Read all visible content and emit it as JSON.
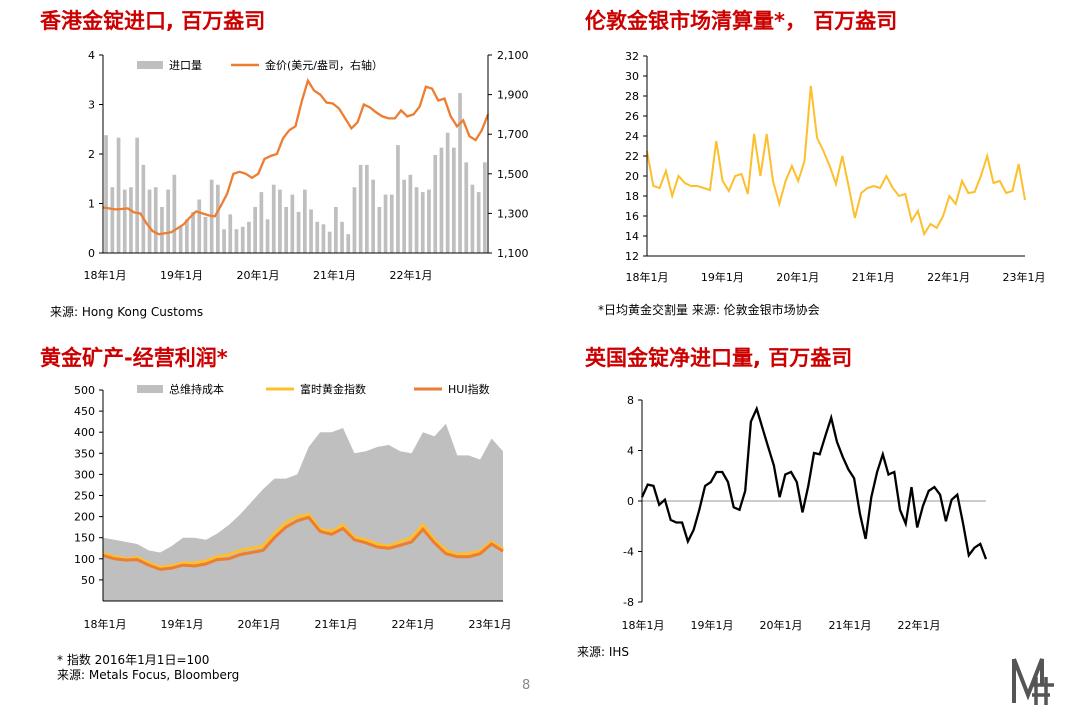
{
  "page_number": "8",
  "logo_icon": "mf-logo-icon",
  "colors": {
    "title_red": "#cc0000",
    "bar_gray": "#bfbfbf",
    "price_orange": "#ed7d31",
    "gold_yellow": "#fdbf2d",
    "hui_orange": "#ed7d31",
    "line_black": "#000000"
  },
  "chart_data": [
    {
      "type": "bar+line",
      "title": "香港金锭进口, 百万盎司",
      "source": "来源: Hong Kong Customs",
      "legend": [
        {
          "name": "进口量",
          "type": "bar"
        },
        {
          "name": "金价(美元/盎司，右轴）",
          "type": "line"
        }
      ],
      "legend_placement": "top",
      "x_tick_labels": [
        "18年1月",
        "19年1月",
        "20年1月",
        "21年1月",
        "22年1月"
      ],
      "y_left": {
        "ylim": [
          0,
          4
        ],
        "ticks": [
          "0",
          "1",
          "2",
          "3",
          "4"
        ]
      },
      "y_right": {
        "ylim": [
          1100,
          2100
        ],
        "ticks": [
          "1,100",
          "1,300",
          "1,500",
          "1,700",
          "1,900",
          "2,100"
        ]
      },
      "bars": [
        2.38,
        1.33,
        2.33,
        1.28,
        1.33,
        2.33,
        1.78,
        1.28,
        1.33,
        0.93,
        1.28,
        1.58,
        0.53,
        0.68,
        0.83,
        1.08,
        0.73,
        1.48,
        1.38,
        0.48,
        0.78,
        0.48,
        0.53,
        0.63,
        0.93,
        1.23,
        0.68,
        1.38,
        1.28,
        0.93,
        1.18,
        0.83,
        1.28,
        0.88,
        0.63,
        0.58,
        0.43,
        0.93,
        0.63,
        0.38,
        1.33,
        1.78,
        1.78,
        1.48,
        0.93,
        1.18,
        1.18,
        2.18,
        1.48,
        1.58,
        1.33,
        1.23,
        1.28,
        1.98,
        2.13,
        2.43,
        2.13,
        3.23,
        1.83,
        1.38,
        1.23,
        1.83
      ],
      "price_series": {
        "name": "金价(美元/盎司，右轴）",
        "values": [
          1330,
          1325,
          1320,
          1322,
          1325,
          1305,
          1300,
          1250,
          1210,
          1195,
          1200,
          1205,
          1225,
          1245,
          1280,
          1310,
          1300,
          1290,
          1285,
          1340,
          1400,
          1500,
          1510,
          1500,
          1480,
          1500,
          1575,
          1590,
          1600,
          1680,
          1720,
          1740,
          1865,
          1970,
          1920,
          1900,
          1860,
          1855,
          1830,
          1780,
          1730,
          1760,
          1850,
          1835,
          1810,
          1790,
          1780,
          1780,
          1820,
          1790,
          1800,
          1840,
          1940,
          1930,
          1870,
          1880,
          1790,
          1740,
          1770,
          1690,
          1670,
          1720,
          1800
        ]
      }
    },
    {
      "type": "line",
      "title": "伦敦金银市场清算量*， 百万盎司",
      "source": "*日均黄金交割量 来源: 伦敦金银市场协会",
      "x_tick_labels": [
        "18年1月",
        "19年1月",
        "20年1月",
        "21年1月",
        "22年1月",
        "23年1月"
      ],
      "ylim": [
        12,
        32
      ],
      "y_ticks": [
        "12",
        "14",
        "16",
        "18",
        "20",
        "22",
        "24",
        "26",
        "28",
        "30",
        "32"
      ],
      "series": [
        {
          "values": [
            22.5,
            19.0,
            18.8,
            20.5,
            18.0,
            20.0,
            19.3,
            19.0,
            19.0,
            18.8,
            18.6,
            23.5,
            19.5,
            18.5,
            20.0,
            20.2,
            18.2,
            24.2,
            20.0,
            24.2,
            19.5,
            17.2,
            19.5,
            21.0,
            19.5,
            21.5,
            29.0,
            23.8,
            22.5,
            21.0,
            19.2,
            22.0,
            19.0,
            15.8,
            18.3,
            18.8,
            19.0,
            18.8,
            20.0,
            18.8,
            18.0,
            18.2,
            15.5,
            16.5,
            14.2,
            15.2,
            14.8,
            16.0,
            18.0,
            17.2,
            19.5,
            18.3,
            18.4,
            20.0,
            22.0,
            19.3,
            19.5,
            18.3,
            18.5,
            21.2,
            17.6
          ]
        }
      ]
    },
    {
      "type": "area+line",
      "title": "黄金矿产-经营利润*",
      "source": "来源: Metals Focus, Bloomberg",
      "footnote": "* 指数 2016年1月1日=100",
      "legend": [
        {
          "name": "总维持成本",
          "type": "area"
        },
        {
          "name": "富时黄金指数",
          "type": "line"
        },
        {
          "name": "HUI指数",
          "type": "line"
        }
      ],
      "legend_placement": "top",
      "x_tick_labels": [
        "18年1月",
        "19年1月",
        "20年1月",
        "21年1月",
        "22年1月",
        "23年1月"
      ],
      "ylim": [
        0,
        500
      ],
      "y_ticks": [
        "50",
        "100",
        "150",
        "200",
        "250",
        "300",
        "350",
        "400",
        "450",
        "500"
      ],
      "series": [
        {
          "name": "总维持成本",
          "values": [
            150,
            145,
            140,
            135,
            120,
            115,
            130,
            150,
            150,
            145,
            160,
            180,
            205,
            235,
            265,
            290,
            290,
            300,
            365,
            400,
            400,
            410,
            350,
            355,
            365,
            370,
            355,
            350,
            400,
            390,
            420,
            345,
            345,
            335,
            385,
            355
          ]
        },
        {
          "name": "富时黄金指数",
          "values": [
            113,
            105,
            100,
            103,
            90,
            80,
            83,
            90,
            90,
            95,
            105,
            110,
            120,
            125,
            130,
            160,
            185,
            200,
            205,
            170,
            165,
            180,
            150,
            145,
            135,
            130,
            140,
            150,
            180,
            145,
            120,
            110,
            113,
            118,
            140,
            123
          ]
        },
        {
          "name": "HUI指数",
          "values": [
            108,
            100,
            97,
            98,
            85,
            75,
            78,
            85,
            83,
            88,
            98,
            100,
            110,
            115,
            120,
            150,
            175,
            190,
            198,
            165,
            158,
            172,
            145,
            138,
            128,
            125,
            132,
            140,
            170,
            138,
            112,
            105,
            105,
            112,
            135,
            118
          ]
        }
      ]
    },
    {
      "type": "line",
      "title": "英国金锭净进口量, 百万盎司",
      "source": "来源: IHS",
      "x_tick_labels": [
        "18年1月",
        "19年1月",
        "20年1月",
        "21年1月",
        "22年1月"
      ],
      "ylim": [
        -8,
        8
      ],
      "y_ticks": [
        "8",
        "4",
        "0",
        "-4",
        "-8"
      ],
      "series": [
        {
          "values": [
            0.3,
            1.3,
            1.2,
            -0.3,
            0.1,
            -1.5,
            -1.7,
            -1.7,
            -3.2,
            -2.3,
            -0.7,
            1.2,
            1.5,
            2.3,
            2.3,
            1.5,
            -0.5,
            -0.7,
            0.8,
            6.3,
            7.3,
            5.8,
            4.3,
            2.8,
            0.3,
            2.1,
            2.3,
            1.5,
            -0.9,
            1.2,
            3.8,
            3.7,
            5.2,
            6.6,
            4.7,
            3.5,
            2.5,
            1.8,
            -1.0,
            -3.0,
            0.3,
            2.3,
            3.7,
            2.1,
            2.3,
            -0.7,
            -1.8,
            1.1,
            -2.1,
            -0.4,
            0.8,
            1.1,
            0.5,
            -1.6,
            0.1,
            0.5,
            -1.8,
            -4.3,
            -3.7,
            -3.4,
            -4.6
          ]
        }
      ]
    }
  ]
}
